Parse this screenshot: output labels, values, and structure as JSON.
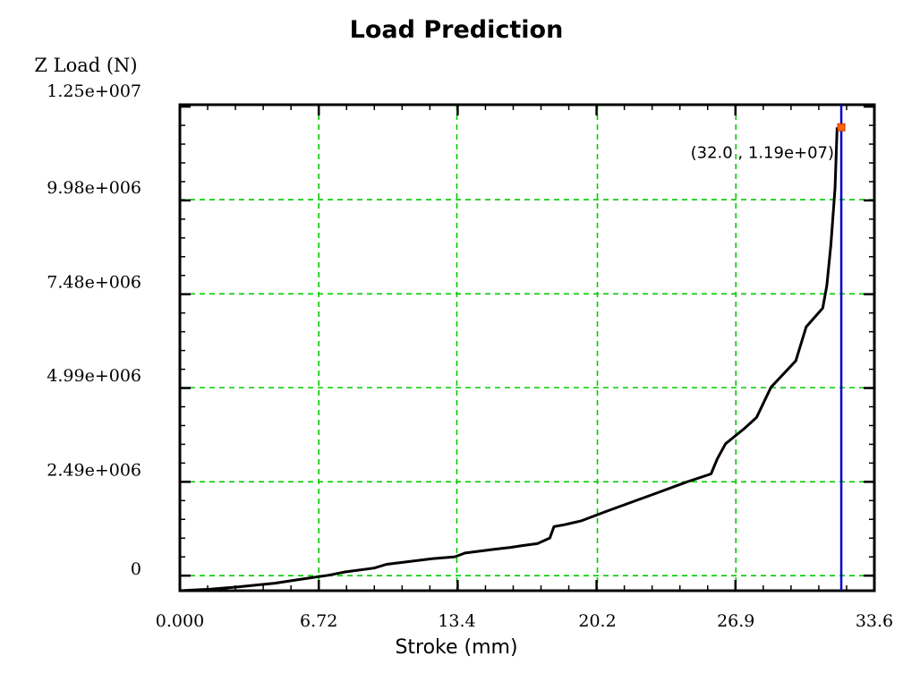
{
  "chart_data": {
    "type": "line",
    "title": "Load Prediction",
    "xlabel": "Stroke (mm)",
    "ylabel": "Z Load (N)",
    "xlim": [
      0,
      33.6
    ],
    "ylim": [
      -400000,
      12500000
    ],
    "x_ticks": [
      {
        "value": 0.0,
        "label": "0.000"
      },
      {
        "value": 6.72,
        "label": "6.72"
      },
      {
        "value": 13.4,
        "label": "13.4"
      },
      {
        "value": 20.2,
        "label": "20.2"
      },
      {
        "value": 26.9,
        "label": "26.9"
      },
      {
        "value": 33.6,
        "label": "33.6"
      }
    ],
    "y_ticks": [
      {
        "value": 0,
        "label": "0"
      },
      {
        "value": 2490000,
        "label": "2.49e+006"
      },
      {
        "value": 4990000,
        "label": "4.99e+006"
      },
      {
        "value": 7480000,
        "label": "7.48e+006"
      },
      {
        "value": 9980000,
        "label": "9.98e+006"
      },
      {
        "value": 12500000,
        "label": "1.25e+007"
      }
    ],
    "grid": true,
    "grid_color": "#00cc00",
    "line_color": "#000000",
    "cursor_color": "#0000cc",
    "marker_color": "#ff6600",
    "series": [
      {
        "x": [
          0,
          1.5,
          2.8,
          4.6,
          5.8,
          7.2,
          8.0,
          9.4,
          10.0,
          11.5,
          12.2,
          13.3,
          13.8,
          15.2,
          16.0,
          16.6,
          17.3,
          17.9,
          18.1,
          18.6,
          19.4,
          20.6,
          22.1,
          23.1,
          24.6,
          25.7,
          26.0,
          26.4,
          27.3,
          27.9,
          28.6,
          29.8,
          30.3,
          31.1,
          31.3,
          31.5,
          31.7,
          31.8
        ],
        "y": [
          -400000,
          -360000,
          -300000,
          -200000,
          -100000,
          10000,
          100000,
          200000,
          300000,
          400000,
          450000,
          500000,
          600000,
          700000,
          750000,
          800000,
          850000,
          1000000,
          1300000,
          1350000,
          1450000,
          1700000,
          2000000,
          2200000,
          2500000,
          2700000,
          3100000,
          3500000,
          3900000,
          4200000,
          5000000,
          5700000,
          6600000,
          7100000,
          7700000,
          8800000,
          10300000,
          11900000
        ]
      }
    ],
    "cursor_x": 32.0,
    "marker": {
      "x": 32.0,
      "y": 11900000
    },
    "annotation": "(32.0 , 1.19e+07)"
  }
}
